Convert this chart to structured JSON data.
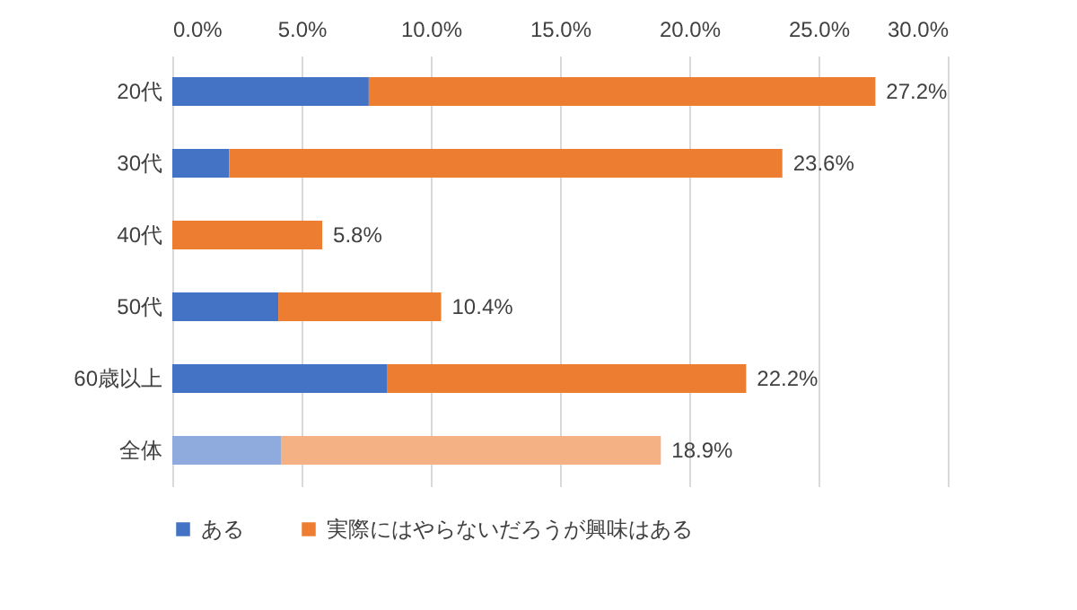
{
  "chart_data": {
    "type": "bar",
    "orientation": "horizontal",
    "stacked": true,
    "categories": [
      "20代",
      "30代",
      "40代",
      "50代",
      "60歳以上",
      "全体"
    ],
    "series": [
      {
        "name": "ある",
        "color": "#4472c4",
        "colors": [
          "#4472c4",
          "#4472c4",
          "#4472c4",
          "#4472c4",
          "#4472c4",
          "#8faadc"
        ],
        "values": [
          7.6,
          2.2,
          0,
          4.1,
          8.3,
          4.2
        ]
      },
      {
        "name": "実際にはやらないだろうが興味はある",
        "color": "#ed7d31",
        "colors": [
          "#ed7d31",
          "#ed7d31",
          "#ed7d31",
          "#ed7d31",
          "#ed7d31",
          "#f4b183"
        ],
        "values": [
          19.6,
          21.4,
          5.8,
          6.3,
          13.9,
          14.7
        ]
      }
    ],
    "totals": [
      "27.2%",
      "23.6%",
      "5.8%",
      "10.4%",
      "22.2%",
      "18.9%"
    ],
    "xlim": [
      0,
      30
    ],
    "xticks": [
      {
        "value": 0,
        "label": "0.0%"
      },
      {
        "value": 5,
        "label": "5.0%"
      },
      {
        "value": 10,
        "label": "10.0%"
      },
      {
        "value": 15,
        "label": "15.0%"
      },
      {
        "value": 20,
        "label": "20.0%"
      },
      {
        "value": 25,
        "label": "25.0%"
      },
      {
        "value": 30,
        "label": "30.0%"
      }
    ],
    "grid": "x",
    "legend": "bottom"
  }
}
